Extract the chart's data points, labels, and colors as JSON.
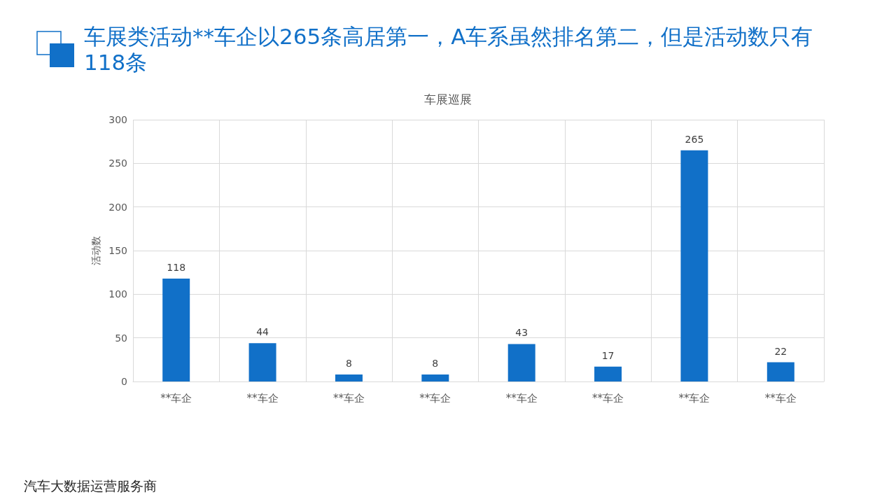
{
  "chart_data": {
    "type": "bar",
    "title": "车展类活动**车企以265条高居第一，A车系虽然排名第二，但是活动数只有118条",
    "subtitle": "车展巡展",
    "ylabel": "活动数",
    "categories": [
      "**车企",
      "**车企",
      "**车企",
      "**车企",
      "**车企",
      "**车企",
      "**车企",
      "**车企"
    ],
    "values": [
      118,
      44,
      8,
      8,
      43,
      17,
      265,
      22
    ],
    "color": "#1170c8",
    "ylim": [
      0,
      300
    ],
    "yticks": [
      0,
      50,
      100,
      150,
      200,
      250,
      300
    ],
    "grid": true,
    "data_labels": true,
    "annotations": [
      "汽车大数据运营服务商"
    ]
  }
}
